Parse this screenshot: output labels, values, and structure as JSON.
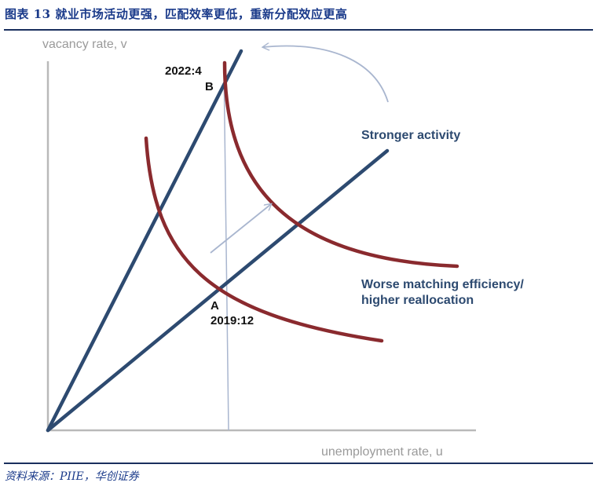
{
  "figure_title": "图表 13 就业市场活动更强，匹配效率更低，重新分配效应更高",
  "source": "资料来源：PIIE，华创证券",
  "diagram": {
    "y_axis_label": "vacancy rate, v",
    "x_axis_label": "unemployment rate, u",
    "point_b_date": "2022:4",
    "point_b_letter": "B",
    "point_a_letter": "A",
    "point_a_date": "2019:12",
    "activity_label": "Stronger activity",
    "efficiency_label_line1": "Worse matching efficiency/",
    "efficiency_label_line2": "higher reallocation",
    "colors": {
      "steady_lines": "#2d4a70",
      "beveridge_curves": "#8a2a2e",
      "arrows": "#a9b6cf",
      "axes": "#b9b9b9",
      "title": "#1a3a8a"
    }
  }
}
